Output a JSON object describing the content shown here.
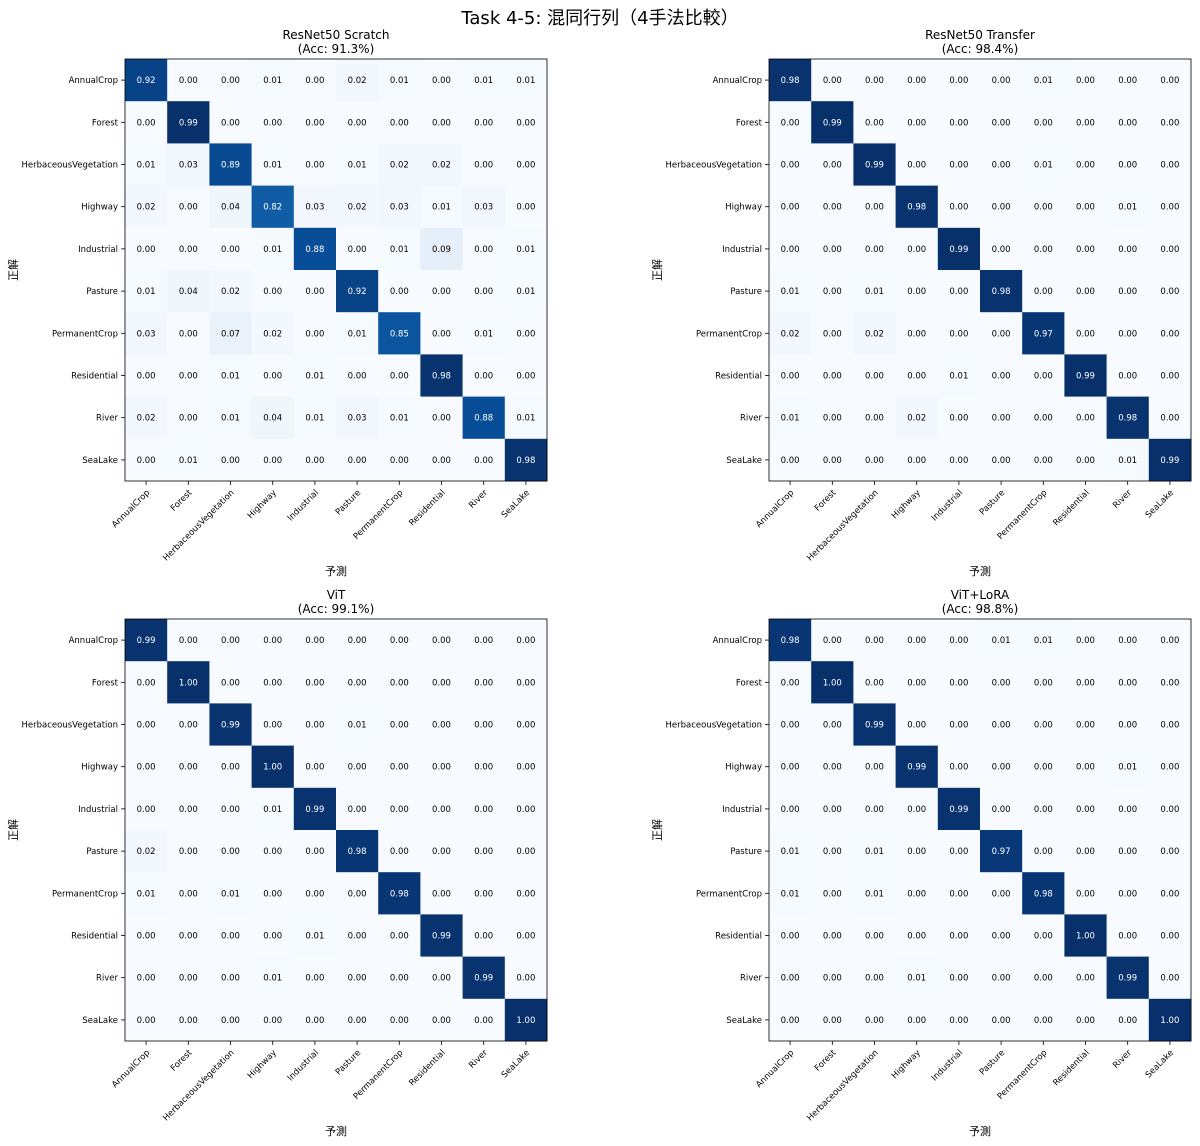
{
  "suptitle": "Task 4-5: 混同行列（4手法比較）",
  "chart_data": [
    {
      "type": "heatmap",
      "title": "ResNet50 Scratch",
      "subtitle": "(Acc: 91.3%)",
      "xlabel": "予測",
      "ylabel": "正解",
      "labels": [
        "AnnualCrop",
        "Forest",
        "HerbaceousVegetation",
        "Highway",
        "Industrial",
        "Pasture",
        "PermanentCrop",
        "Residential",
        "River",
        "SeaLake"
      ],
      "matrix": [
        [
          0.92,
          0.0,
          0.0,
          0.01,
          0.0,
          0.02,
          0.01,
          0.0,
          0.01,
          0.01
        ],
        [
          0.0,
          0.99,
          0.0,
          0.0,
          0.0,
          0.0,
          0.0,
          0.0,
          0.0,
          0.0
        ],
        [
          0.01,
          0.03,
          0.89,
          0.01,
          0.0,
          0.01,
          0.02,
          0.02,
          0.0,
          0.0
        ],
        [
          0.02,
          0.0,
          0.04,
          0.82,
          0.03,
          0.02,
          0.03,
          0.01,
          0.03,
          0.0
        ],
        [
          0.0,
          0.0,
          0.0,
          0.01,
          0.88,
          0.0,
          0.01,
          0.09,
          0.0,
          0.01
        ],
        [
          0.01,
          0.04,
          0.02,
          0.0,
          0.0,
          0.92,
          0.0,
          0.0,
          0.0,
          0.01
        ],
        [
          0.03,
          0.0,
          0.07,
          0.02,
          0.0,
          0.01,
          0.85,
          0.0,
          0.01,
          0.0
        ],
        [
          0.0,
          0.0,
          0.01,
          0.0,
          0.01,
          0.0,
          0.0,
          0.98,
          0.0,
          0.0
        ],
        [
          0.02,
          0.0,
          0.01,
          0.04,
          0.01,
          0.03,
          0.01,
          0.0,
          0.88,
          0.01
        ],
        [
          0.0,
          0.01,
          0.0,
          0.0,
          0.0,
          0.0,
          0.0,
          0.0,
          0.0,
          0.98
        ]
      ]
    },
    {
      "type": "heatmap",
      "title": "ResNet50 Transfer",
      "subtitle": "(Acc: 98.4%)",
      "xlabel": "予測",
      "ylabel": "正解",
      "labels": [
        "AnnualCrop",
        "Forest",
        "HerbaceousVegetation",
        "Highway",
        "Industrial",
        "Pasture",
        "PermanentCrop",
        "Residential",
        "River",
        "SeaLake"
      ],
      "matrix": [
        [
          0.98,
          0.0,
          0.0,
          0.0,
          0.0,
          0.0,
          0.01,
          0.0,
          0.0,
          0.0
        ],
        [
          0.0,
          0.99,
          0.0,
          0.0,
          0.0,
          0.0,
          0.0,
          0.0,
          0.0,
          0.0
        ],
        [
          0.0,
          0.0,
          0.99,
          0.0,
          0.0,
          0.0,
          0.01,
          0.0,
          0.0,
          0.0
        ],
        [
          0.0,
          0.0,
          0.0,
          0.98,
          0.0,
          0.0,
          0.0,
          0.0,
          0.01,
          0.0
        ],
        [
          0.0,
          0.0,
          0.0,
          0.0,
          0.99,
          0.0,
          0.0,
          0.0,
          0.0,
          0.0
        ],
        [
          0.01,
          0.0,
          0.01,
          0.0,
          0.0,
          0.98,
          0.0,
          0.0,
          0.0,
          0.0
        ],
        [
          0.02,
          0.0,
          0.02,
          0.0,
          0.0,
          0.0,
          0.97,
          0.0,
          0.0,
          0.0
        ],
        [
          0.0,
          0.0,
          0.0,
          0.0,
          0.01,
          0.0,
          0.0,
          0.99,
          0.0,
          0.0
        ],
        [
          0.01,
          0.0,
          0.0,
          0.02,
          0.0,
          0.0,
          0.0,
          0.0,
          0.98,
          0.0
        ],
        [
          0.0,
          0.0,
          0.0,
          0.0,
          0.0,
          0.0,
          0.0,
          0.0,
          0.01,
          0.99
        ]
      ]
    },
    {
      "type": "heatmap",
      "title": "ViT",
      "subtitle": "(Acc: 99.1%)",
      "xlabel": "予測",
      "ylabel": "正解",
      "labels": [
        "AnnualCrop",
        "Forest",
        "HerbaceousVegetation",
        "Highway",
        "Industrial",
        "Pasture",
        "PermanentCrop",
        "Residential",
        "River",
        "SeaLake"
      ],
      "matrix": [
        [
          0.99,
          0.0,
          0.0,
          0.0,
          0.0,
          0.0,
          0.0,
          0.0,
          0.0,
          0.0
        ],
        [
          0.0,
          1.0,
          0.0,
          0.0,
          0.0,
          0.0,
          0.0,
          0.0,
          0.0,
          0.0
        ],
        [
          0.0,
          0.0,
          0.99,
          0.0,
          0.0,
          0.01,
          0.0,
          0.0,
          0.0,
          0.0
        ],
        [
          0.0,
          0.0,
          0.0,
          1.0,
          0.0,
          0.0,
          0.0,
          0.0,
          0.0,
          0.0
        ],
        [
          0.0,
          0.0,
          0.0,
          0.01,
          0.99,
          0.0,
          0.0,
          0.0,
          0.0,
          0.0
        ],
        [
          0.02,
          0.0,
          0.0,
          0.0,
          0.0,
          0.98,
          0.0,
          0.0,
          0.0,
          0.0
        ],
        [
          0.01,
          0.0,
          0.01,
          0.0,
          0.0,
          0.0,
          0.98,
          0.0,
          0.0,
          0.0
        ],
        [
          0.0,
          0.0,
          0.0,
          0.0,
          0.01,
          0.0,
          0.0,
          0.99,
          0.0,
          0.0
        ],
        [
          0.0,
          0.0,
          0.0,
          0.01,
          0.0,
          0.0,
          0.0,
          0.0,
          0.99,
          0.0
        ],
        [
          0.0,
          0.0,
          0.0,
          0.0,
          0.0,
          0.0,
          0.0,
          0.0,
          0.0,
          1.0
        ]
      ]
    },
    {
      "type": "heatmap",
      "title": "ViT+LoRA",
      "subtitle": "(Acc: 98.8%)",
      "xlabel": "予測",
      "ylabel": "正解",
      "labels": [
        "AnnualCrop",
        "Forest",
        "HerbaceousVegetation",
        "Highway",
        "Industrial",
        "Pasture",
        "PermanentCrop",
        "Residential",
        "River",
        "SeaLake"
      ],
      "matrix": [
        [
          0.98,
          0.0,
          0.0,
          0.0,
          0.0,
          0.01,
          0.01,
          0.0,
          0.0,
          0.0
        ],
        [
          0.0,
          1.0,
          0.0,
          0.0,
          0.0,
          0.0,
          0.0,
          0.0,
          0.0,
          0.0
        ],
        [
          0.0,
          0.0,
          0.99,
          0.0,
          0.0,
          0.0,
          0.0,
          0.0,
          0.0,
          0.0
        ],
        [
          0.0,
          0.0,
          0.0,
          0.99,
          0.0,
          0.0,
          0.0,
          0.0,
          0.01,
          0.0
        ],
        [
          0.0,
          0.0,
          0.0,
          0.0,
          0.99,
          0.0,
          0.0,
          0.0,
          0.0,
          0.0
        ],
        [
          0.01,
          0.0,
          0.01,
          0.0,
          0.0,
          0.97,
          0.0,
          0.0,
          0.0,
          0.0
        ],
        [
          0.01,
          0.0,
          0.01,
          0.0,
          0.0,
          0.0,
          0.98,
          0.0,
          0.0,
          0.0
        ],
        [
          0.0,
          0.0,
          0.0,
          0.0,
          0.0,
          0.0,
          0.0,
          1.0,
          0.0,
          0.0
        ],
        [
          0.0,
          0.0,
          0.0,
          0.01,
          0.0,
          0.0,
          0.0,
          0.0,
          0.99,
          0.0
        ],
        [
          0.0,
          0.0,
          0.0,
          0.0,
          0.0,
          0.0,
          0.0,
          0.0,
          0.0,
          1.0
        ]
      ]
    }
  ]
}
